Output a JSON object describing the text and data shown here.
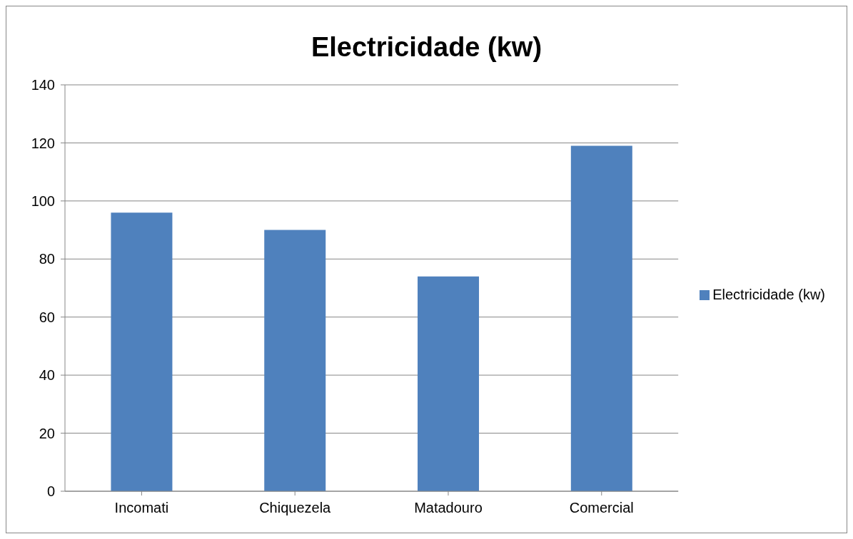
{
  "chart_data": {
    "type": "bar",
    "title": "Electricidade (kw)",
    "categories": [
      "Incomati",
      "Chiquezela",
      "Matadouro",
      "Comercial"
    ],
    "series": [
      {
        "name": "Electricidade (kw)",
        "color": "#4f81bd",
        "values": [
          96,
          90,
          74,
          119
        ]
      }
    ],
    "ylim": [
      0,
      140
    ],
    "yticks": [
      0,
      20,
      40,
      60,
      80,
      100,
      120,
      140
    ],
    "grid": "y",
    "legend": "right"
  }
}
